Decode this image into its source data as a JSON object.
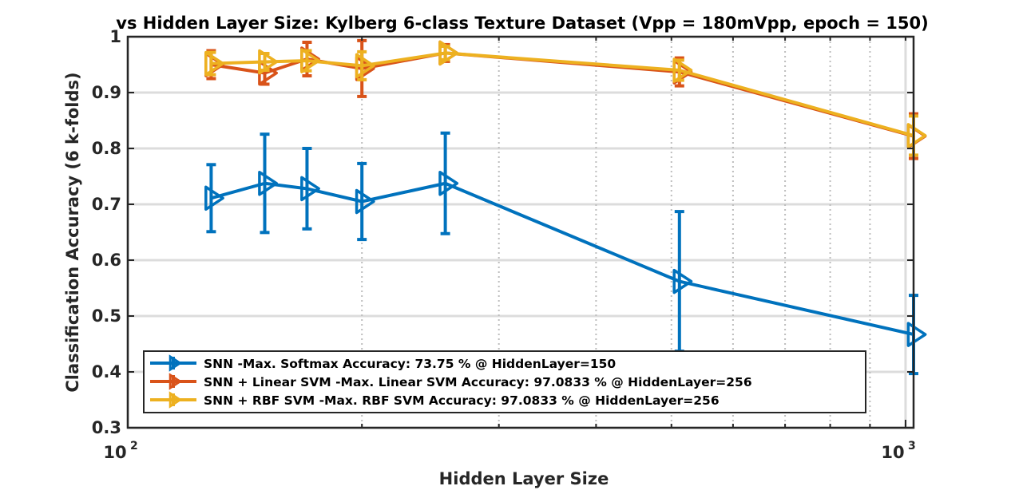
{
  "chart_data": {
    "type": "line",
    "title": "vs Hidden Layer Size: Kylberg 6-class Texture Dataset (Vpp = 180mVpp,  epoch = 150)",
    "xlabel": "Hidden Layer Size",
    "ylabel": "Classification Accuracy (6 k-folds)",
    "xscale": "log",
    "xlim": [
      100,
      1024
    ],
    "ylim": [
      0.3,
      1
    ],
    "x_ticks": [
      100,
      1000
    ],
    "x_tick_labels": [
      {
        "base": "10",
        "exp": "2"
      },
      {
        "base": "10",
        "exp": "3"
      }
    ],
    "y_ticks": [
      0.3,
      0.4,
      0.5,
      0.6,
      0.7,
      0.8,
      0.9,
      1
    ],
    "y_tick_labels": [
      "0.3",
      "0.4",
      "0.5",
      "0.6",
      "0.7",
      "0.8",
      "0.9",
      "1"
    ],
    "grid": true,
    "legend_position": "bottom-left",
    "x": [
      128,
      150,
      170,
      200,
      256,
      512,
      1024
    ],
    "series": [
      {
        "name": "SNN -Max. Softmax Accuracy: 73.75 % @ HiddenLayer=150",
        "color": "#0072BD",
        "values": [
          0.711,
          0.7375,
          0.728,
          0.705,
          0.7375,
          0.562,
          0.467
        ],
        "errors": [
          0.06,
          0.088,
          0.072,
          0.068,
          0.09,
          0.125,
          0.07
        ]
      },
      {
        "name": "SNN + Linear SVM -Max. Linear SVM Accuracy: 97.0833 % @ HiddenLayer=256",
        "color": "#D95319",
        "values": [
          0.95,
          0.935,
          0.96,
          0.943,
          0.970833,
          0.937,
          0.822
        ],
        "errors": [
          0.025,
          0.02,
          0.03,
          0.05,
          0.015,
          0.025,
          0.04
        ]
      },
      {
        "name": "SNN + RBF SVM -Max. RBF SVM Accuracy: 97.0833 % @ HiddenLayer=256",
        "color": "#EDB120",
        "values": [
          0.952,
          0.955,
          0.957,
          0.948,
          0.970833,
          0.94,
          0.823
        ],
        "errors": [
          0.02,
          0.015,
          0.018,
          0.025,
          0.012,
          0.018,
          0.035
        ]
      }
    ]
  }
}
